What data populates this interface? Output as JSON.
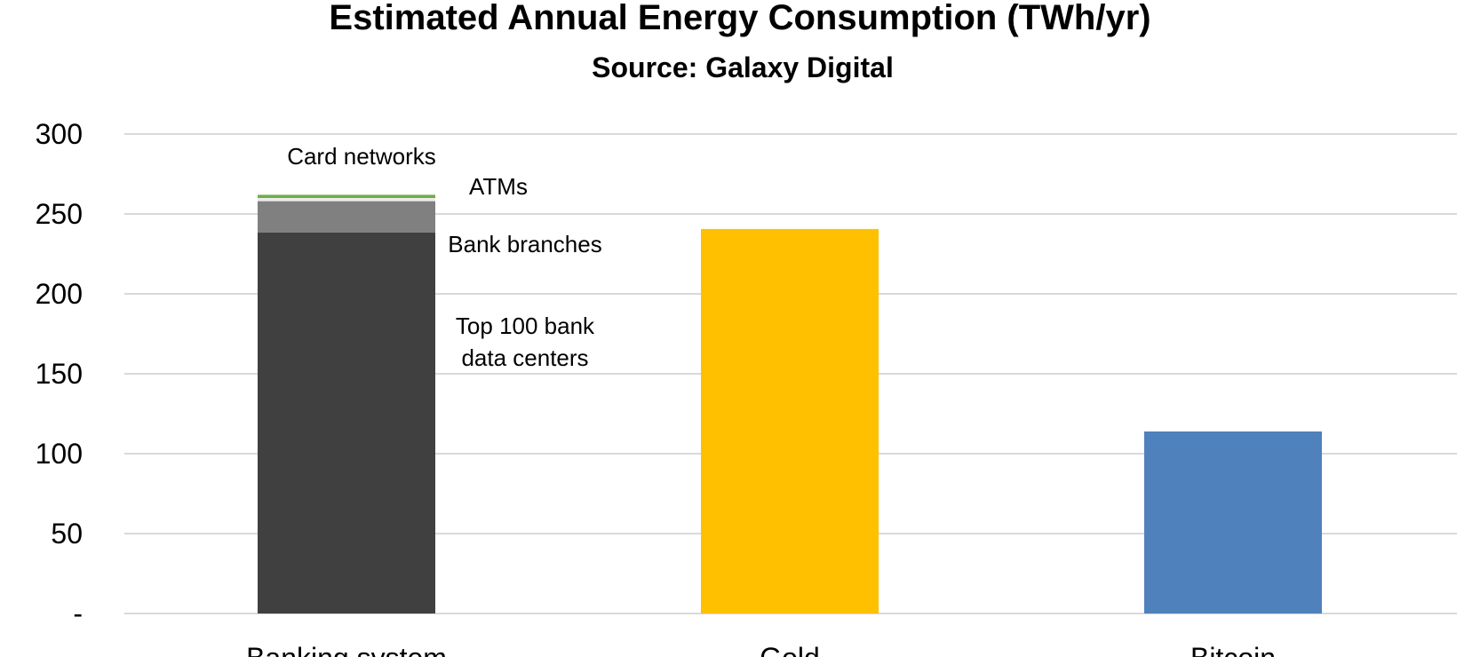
{
  "chart_data": {
    "type": "bar",
    "stacked": true,
    "title": "Estimated Annual Energy Consumption (TWh/yr)",
    "subtitle": "Source: Galaxy Digital",
    "xlabel": "",
    "ylabel": "",
    "ylim": [
      0,
      300
    ],
    "yticks": [
      {
        "value": 0,
        "label": "-"
      },
      {
        "value": 50,
        "label": "50"
      },
      {
        "value": 100,
        "label": "100"
      },
      {
        "value": 150,
        "label": "150"
      },
      {
        "value": 200,
        "label": "200"
      },
      {
        "value": 250,
        "label": "250"
      },
      {
        "value": 300,
        "label": "300"
      }
    ],
    "grid": true,
    "legend": "none",
    "categories": [
      "Banking system",
      "Gold",
      "Bitcoin"
    ],
    "bars": [
      {
        "category": "Banking system",
        "segments": [
          {
            "name": "Top 100 bank data centers",
            "value": 238.5,
            "color": "#404040"
          },
          {
            "name": "Bank branches",
            "value": 19.5,
            "color": "#808080"
          },
          {
            "name": "ATMs",
            "value": 2.0,
            "color": "#ebebeb"
          },
          {
            "name": "Card networks",
            "value": 2.0,
            "color": "#70ad47"
          }
        ]
      },
      {
        "category": "Gold",
        "segments": [
          {
            "name": "Gold",
            "value": 240.6,
            "color": "#ffc000"
          }
        ]
      },
      {
        "category": "Bitcoin",
        "segments": [
          {
            "name": "Bitcoin",
            "value": 113.9,
            "color": "#4f81bd"
          }
        ]
      }
    ],
    "annotations": [
      {
        "lines": [
          "Card networks"
        ],
        "anchor": "card-networks"
      },
      {
        "lines": [
          "ATMs"
        ],
        "anchor": "atms"
      },
      {
        "lines": [
          "Bank branches"
        ],
        "anchor": "bank-branches"
      },
      {
        "lines": [
          "Top 100 bank",
          "data centers"
        ],
        "anchor": "data-centers"
      }
    ]
  }
}
